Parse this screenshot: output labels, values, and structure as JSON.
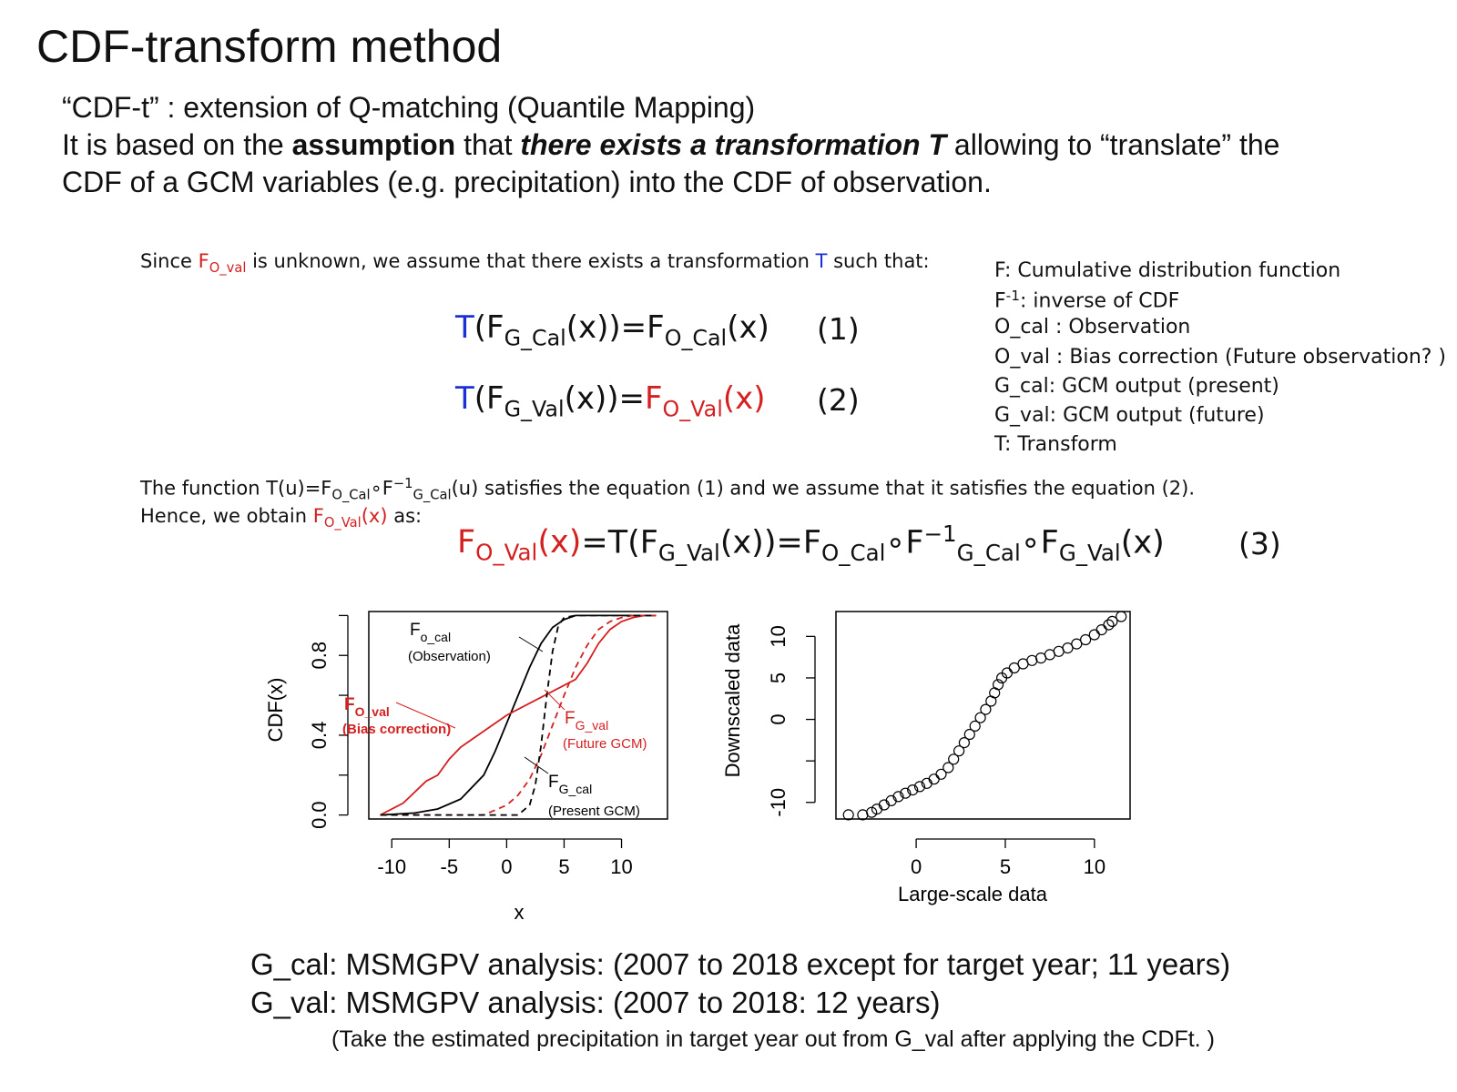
{
  "title": "CDF-transform method",
  "intro": {
    "line1": "“CDF-t”  : extension of Q-matching (Quantile Mapping)",
    "line2_a": "It is based on the ",
    "line2_b": "assumption",
    "line2_c": " that ",
    "line2_d": "there exists a transformation T",
    "line2_e": " allowing to “translate” the",
    "line3": "CDF of a GCM variables (e.g. precipitation) into the CDF of observation."
  },
  "since": {
    "a": "Since ",
    "b_main": "F",
    "b_sub": "O_val",
    "c": " is unknown, we assume that there exists a transformation ",
    "d": "T",
    "e": " such that:"
  },
  "equations": {
    "eq1": {
      "T": "T",
      "a": "(F",
      "a_sub": "G_Cal",
      "b": "(x))=F",
      "b_sub": "O_Cal",
      "c": "(x)",
      "num": "(1)"
    },
    "eq2": {
      "T": "T",
      "a": "(F",
      "a_sub": "G_Val",
      "b": "(x))=",
      "c": "F",
      "c_sub": "O_Val",
      "d": "(x)",
      "num": "(2)"
    },
    "eq3": {
      "a": "F",
      "a_sub": "O_Val",
      "b": "(x)",
      "c": "=T(F",
      "c_sub": "G_Val",
      "d": "(x))=F",
      "d_sub": "O_Cal",
      "e": "∘F",
      "e_sup": "−1",
      "e_sub": "G_Cal",
      "f": "∘F",
      "f_sub": "G_Val",
      "g": "(x)",
      "num": "(3)"
    }
  },
  "function_text": {
    "a": "The function T(u)=F",
    "a_sub": "O_Cal",
    "b": "∘F",
    "b_sup": "−1",
    "b_sub": "G_Cal",
    "c": "(u) satisfies the equation (1) and we assume that it satisfies the equation (2).",
    "hence_a": "Hence, we obtain ",
    "hence_b": "F",
    "hence_b_sub": "O_Val",
    "hence_c": "(x)",
    "hence_d": " as:"
  },
  "legend": [
    "F: Cumulative distribution function",
    "F",
    "-1",
    ": inverse of CDF",
    "O_cal : Observation",
    "O_val : Bias correction (Future observation? )",
    "G_cal: GCM output (present)",
    "G_val: GCM output (future)",
    "T: Transform"
  ],
  "chart_data": [
    {
      "type": "line",
      "title": "",
      "xlabel": "x",
      "ylabel": "CDF(x)",
      "xlim": [
        -12,
        14
      ],
      "ylim": [
        -0.02,
        1.02
      ],
      "x_ticks": [
        "-10",
        "-5",
        "0",
        "5",
        "10"
      ],
      "y_ticks": [
        "0.0",
        "0.4",
        "0.8"
      ],
      "series": [
        {
          "name": "F",
          "color": "#000000",
          "style": "solid",
          "x": [
            -11,
            -8,
            -6,
            -4,
            -2,
            -1,
            0,
            1,
            2,
            3,
            4,
            5,
            6,
            8,
            13
          ],
          "y": [
            0.0,
            0.01,
            0.03,
            0.08,
            0.2,
            0.32,
            0.46,
            0.6,
            0.74,
            0.86,
            0.94,
            0.98,
            1.0,
            1.0,
            1.0
          ]
        },
        {
          "name": "F",
          "color": "#d42020",
          "style": "solid",
          "x": [
            -11,
            -9,
            -7,
            -6,
            -5,
            -4,
            -2,
            0,
            2,
            4,
            6,
            7,
            8,
            9,
            10,
            11,
            12,
            13
          ],
          "y": [
            0.0,
            0.06,
            0.17,
            0.2,
            0.28,
            0.34,
            0.42,
            0.5,
            0.56,
            0.62,
            0.68,
            0.76,
            0.86,
            0.93,
            0.97,
            0.99,
            1.0,
            1.0
          ]
        },
        {
          "name": "F",
          "color": "#d42020",
          "style": "dashed",
          "x": [
            -11,
            -2,
            0,
            1,
            2,
            3,
            4,
            5,
            6,
            7,
            8,
            9,
            10,
            11,
            13
          ],
          "y": [
            0.0,
            0.0,
            0.05,
            0.1,
            0.18,
            0.3,
            0.45,
            0.6,
            0.74,
            0.85,
            0.93,
            0.97,
            0.99,
            1.0,
            1.0
          ]
        },
        {
          "name": "F",
          "color": "#000000",
          "style": "dashed",
          "x": [
            -11,
            1,
            2,
            2.5,
            3,
            3.5,
            4,
            4.5,
            5,
            6,
            13
          ],
          "y": [
            0.0,
            0.0,
            0.05,
            0.15,
            0.35,
            0.6,
            0.82,
            0.95,
            0.99,
            1.0,
            1.0
          ]
        }
      ],
      "annotations": [
        {
          "main": "F",
          "sub": "o_cal",
          "note": "(Observation)",
          "color": "#000000"
        },
        {
          "main": "F",
          "sub": "O_val",
          "note": "(Bias correction)",
          "color": "#d42020"
        },
        {
          "main": "F",
          "sub": "G_val",
          "note": "(Future GCM)",
          "color": "#d42020"
        },
        {
          "main": "F",
          "sub": "G_cal",
          "note": "(Present GCM)",
          "color": "#000000"
        }
      ]
    },
    {
      "type": "scatter",
      "title": "",
      "xlabel": "Large-scale data",
      "ylabel": "Downscaled data",
      "xlim": [
        -4.5,
        12
      ],
      "ylim": [
        -12,
        13
      ],
      "x_ticks": [
        "0",
        "5",
        "10"
      ],
      "y_ticks": [
        "-10",
        "0",
        "5",
        "10"
      ],
      "points": [
        [
          -3.8,
          -11.5
        ],
        [
          -3.0,
          -11.5
        ],
        [
          -2.5,
          -11.2
        ],
        [
          -2.2,
          -10.8
        ],
        [
          -1.8,
          -10.3
        ],
        [
          -1.4,
          -9.8
        ],
        [
          -1.0,
          -9.3
        ],
        [
          -0.6,
          -8.9
        ],
        [
          -0.2,
          -8.5
        ],
        [
          0.2,
          -8.1
        ],
        [
          0.6,
          -7.7
        ],
        [
          1.0,
          -7.2
        ],
        [
          1.4,
          -6.6
        ],
        [
          1.8,
          -5.8
        ],
        [
          2.1,
          -4.8
        ],
        [
          2.4,
          -3.8
        ],
        [
          2.7,
          -2.8
        ],
        [
          3.0,
          -1.8
        ],
        [
          3.3,
          -0.8
        ],
        [
          3.6,
          0.2
        ],
        [
          3.9,
          1.2
        ],
        [
          4.2,
          2.2
        ],
        [
          4.4,
          3.2
        ],
        [
          4.6,
          4.2
        ],
        [
          4.8,
          5.0
        ],
        [
          5.1,
          5.6
        ],
        [
          5.5,
          6.2
        ],
        [
          6.0,
          6.7
        ],
        [
          6.5,
          7.1
        ],
        [
          7.0,
          7.4
        ],
        [
          7.5,
          7.8
        ],
        [
          8.0,
          8.2
        ],
        [
          8.5,
          8.6
        ],
        [
          9.0,
          9.1
        ],
        [
          9.5,
          9.6
        ],
        [
          10.0,
          10.2
        ],
        [
          10.4,
          10.8
        ],
        [
          10.8,
          11.4
        ],
        [
          11.0,
          11.8
        ],
        [
          11.5,
          12.4
        ]
      ]
    }
  ],
  "bottom": {
    "line1": "G_cal: MSMGPV analysis:  (2007 to 2018 except for target year; 11 years)",
    "line2": "G_val: MSMGPV analysis:  (2007 to 2018: 12 years)",
    "line3": "(Take the estimated precipitation in target year out from G_val after applying the CDFt. )"
  }
}
